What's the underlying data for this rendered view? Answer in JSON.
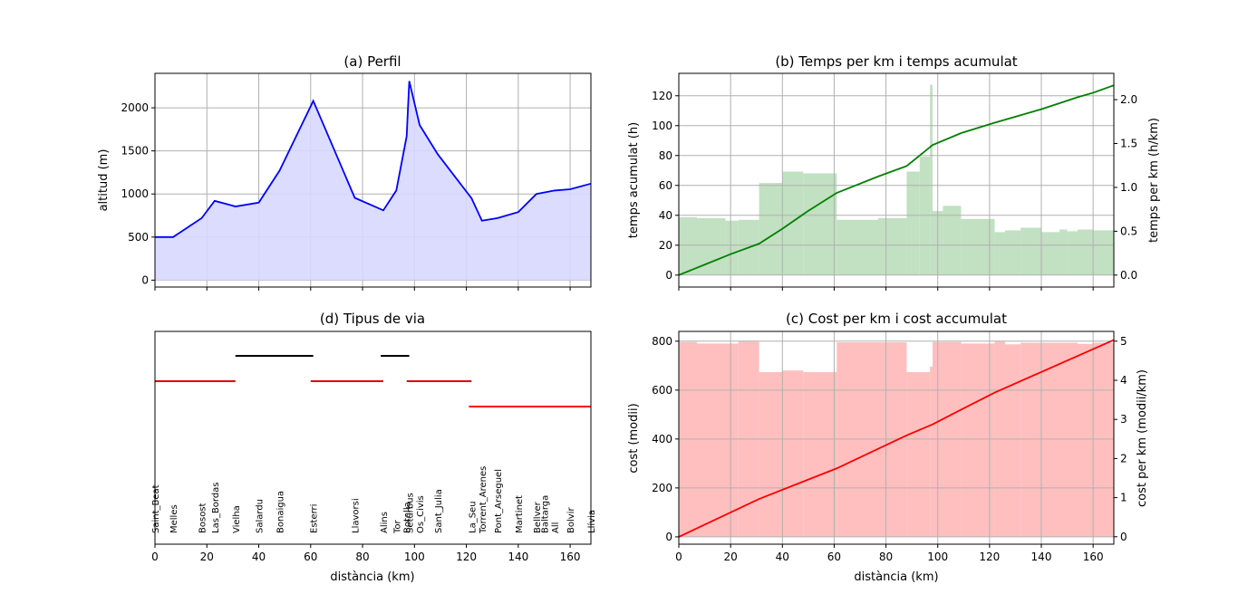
{
  "chart_data": [
    {
      "id": "a",
      "type": "area",
      "title": "(a) Perfil",
      "xlabel": "",
      "ylabel": "altitud (m)",
      "xlim": [
        0,
        168
      ],
      "ylim": [
        -80,
        2400
      ],
      "xticks": [
        0,
        20,
        40,
        60,
        80,
        100,
        120,
        140,
        160
      ],
      "yticks": [
        0,
        500,
        1000,
        1500,
        2000
      ],
      "grid": true,
      "colors": {
        "line": "#0000ff",
        "fill": "#d8d8ff"
      },
      "x": [
        0,
        7,
        18,
        23,
        31,
        40,
        48,
        61,
        64,
        77,
        88,
        93,
        97,
        98,
        102,
        109,
        122,
        126,
        132,
        140,
        147,
        154,
        160,
        168
      ],
      "y": [
        500,
        500,
        720,
        920,
        855,
        900,
        1270,
        2080,
        1870,
        955,
        810,
        1040,
        1670,
        2310,
        1800,
        1460,
        950,
        690,
        720,
        790,
        1000,
        1040,
        1055,
        1120
      ]
    },
    {
      "id": "b",
      "type": "bar+line",
      "title": "(b) Temps per km i temps acumulat",
      "xlabel": "",
      "ylabel": "temps acumulat (h)",
      "ylabel_right": "temps per km (h/km)",
      "xlim": [
        0,
        168
      ],
      "ylim": [
        -8,
        135
      ],
      "ylim_right": [
        -0.136,
        2.3
      ],
      "xticks": [
        0,
        20,
        40,
        60,
        80,
        100,
        120,
        140,
        160
      ],
      "yticks": [
        0,
        20,
        40,
        60,
        80,
        100,
        120
      ],
      "yticks_right": [
        0.0,
        0.5,
        1.0,
        1.5,
        2.0
      ],
      "ytick_labels_right": [
        "0.0",
        "0.5",
        "1.0",
        "1.5",
        "2.0"
      ],
      "grid": true,
      "colors": {
        "line": "#008000",
        "bars": "#c2e0c2"
      },
      "line": {
        "x": [
          0,
          10,
          20,
          31,
          40,
          50,
          61,
          77,
          88,
          98,
          109,
          122,
          132,
          140,
          147,
          154,
          160,
          168
        ],
        "y": [
          0,
          7,
          14,
          21,
          31,
          43,
          55,
          66,
          73,
          87,
          95,
          102,
          107,
          111,
          115,
          119,
          122,
          127
        ]
      },
      "bars": [
        {
          "x0": 0,
          "x1": 7,
          "v": 0.66
        },
        {
          "x0": 7,
          "x1": 18,
          "v": 0.65
        },
        {
          "x0": 18,
          "x1": 23,
          "v": 0.62
        },
        {
          "x0": 23,
          "x1": 31,
          "v": 0.63
        },
        {
          "x0": 31,
          "x1": 40,
          "v": 1.05
        },
        {
          "x0": 40,
          "x1": 48,
          "v": 1.18
        },
        {
          "x0": 48,
          "x1": 61,
          "v": 1.16
        },
        {
          "x0": 61,
          "x1": 77,
          "v": 0.63
        },
        {
          "x0": 77,
          "x1": 88,
          "v": 0.65
        },
        {
          "x0": 88,
          "x1": 93,
          "v": 1.18
        },
        {
          "x0": 93,
          "x1": 97,
          "v": 1.35
        },
        {
          "x0": 97,
          "x1": 98,
          "v": 2.17
        },
        {
          "x0": 98,
          "x1": 102,
          "v": 0.73
        },
        {
          "x0": 102,
          "x1": 109,
          "v": 0.79
        },
        {
          "x0": 109,
          "x1": 122,
          "v": 0.64
        },
        {
          "x0": 122,
          "x1": 126,
          "v": 0.49
        },
        {
          "x0": 126,
          "x1": 132,
          "v": 0.51
        },
        {
          "x0": 132,
          "x1": 140,
          "v": 0.54
        },
        {
          "x0": 140,
          "x1": 147,
          "v": 0.49
        },
        {
          "x0": 147,
          "x1": 150,
          "v": 0.52
        },
        {
          "x0": 150,
          "x1": 154,
          "v": 0.5
        },
        {
          "x0": 154,
          "x1": 160,
          "v": 0.52
        },
        {
          "x0": 160,
          "x1": 168,
          "v": 0.51
        }
      ]
    },
    {
      "id": "d",
      "type": "segments",
      "title": "(d) Tipus de via",
      "xlabel": "distància (km)",
      "ylabel": "",
      "xlim": [
        0,
        168
      ],
      "xticks": [
        0,
        20,
        40,
        60,
        80,
        100,
        120,
        140,
        160
      ],
      "segments": [
        {
          "x0": 0,
          "x1": 31,
          "level": 3,
          "color": "#dd0000"
        },
        {
          "x0": 31,
          "x1": 61,
          "level": 4,
          "color": "#000000"
        },
        {
          "x0": 60,
          "x1": 88,
          "level": 3,
          "color": "#dd0000"
        },
        {
          "x0": 87,
          "x1": 98,
          "level": 4,
          "color": "#000000"
        },
        {
          "x0": 97,
          "x1": 122,
          "level": 3,
          "color": "#dd0000"
        },
        {
          "x0": 121,
          "x1": 168,
          "level": 2,
          "color": "#ff0000"
        }
      ],
      "towns": [
        {
          "name": "Saint_Beat",
          "x": 0
        },
        {
          "name": "Melles",
          "x": 7
        },
        {
          "name": "Bosost",
          "x": 18
        },
        {
          "name": "Las_Bordas",
          "x": 23
        },
        {
          "name": "Vielha",
          "x": 31
        },
        {
          "name": "Salardu",
          "x": 40
        },
        {
          "name": "Bonaigua",
          "x": 48
        },
        {
          "name": "Esterri",
          "x": 61
        },
        {
          "name": "Llavorsi",
          "x": 77
        },
        {
          "name": "Alins",
          "x": 88
        },
        {
          "name": "Tor",
          "x": 93
        },
        {
          "name": "Botella",
          "x": 97
        },
        {
          "name": "Setúrbus",
          "x": 98
        },
        {
          "name": "Os_Civis",
          "x": 102
        },
        {
          "name": "Sant_Julia",
          "x": 109
        },
        {
          "name": "La_Seu",
          "x": 122
        },
        {
          "name": "Torrent_Arenes",
          "x": 126
        },
        {
          "name": "Pont_Arseguel",
          "x": 132
        },
        {
          "name": "Martinet",
          "x": 140
        },
        {
          "name": "Bellver",
          "x": 147
        },
        {
          "name": "Baltarga",
          "x": 150
        },
        {
          "name": "All",
          "x": 154
        },
        {
          "name": "Bolvir",
          "x": 160
        },
        {
          "name": "Llívia",
          "x": 168
        }
      ]
    },
    {
      "id": "c",
      "type": "bar+line",
      "title": "(c) Cost per km i cost accumulat",
      "xlabel": "distància (km)",
      "ylabel": "cost (modii)",
      "ylabel_right": "cost per km (modii/km)",
      "xlim": [
        0,
        168
      ],
      "ylim": [
        -30,
        840
      ],
      "ylim_right": [
        -0.19,
        5.25
      ],
      "xticks": [
        0,
        20,
        40,
        60,
        80,
        100,
        120,
        140,
        160
      ],
      "yticks": [
        0,
        200,
        400,
        600,
        800
      ],
      "yticks_right": [
        0,
        1,
        2,
        3,
        4,
        5
      ],
      "ytick_labels_right": [
        "0",
        "1",
        "2",
        "3",
        "4",
        "5"
      ],
      "grid": true,
      "colors": {
        "line": "#ff0000",
        "bars": "#ffbfbf"
      },
      "line": {
        "x": [
          0,
          31,
          61,
          88,
          98,
          109,
          122,
          168
        ],
        "y": [
          0,
          155,
          280,
          415,
          460,
          520,
          590,
          805
        ]
      },
      "bars": [
        {
          "x0": 0,
          "x1": 7,
          "v": 4.98
        },
        {
          "x0": 7,
          "x1": 23,
          "v": 4.94
        },
        {
          "x0": 23,
          "x1": 31,
          "v": 4.99
        },
        {
          "x0": 31,
          "x1": 40,
          "v": 4.21
        },
        {
          "x0": 40,
          "x1": 48,
          "v": 4.25
        },
        {
          "x0": 48,
          "x1": 61,
          "v": 4.21
        },
        {
          "x0": 61,
          "x1": 88,
          "v": 4.97
        },
        {
          "x0": 88,
          "x1": 97,
          "v": 4.21
        },
        {
          "x0": 97,
          "x1": 98,
          "v": 4.35
        },
        {
          "x0": 98,
          "x1": 109,
          "v": 4.98
        },
        {
          "x0": 109,
          "x1": 122,
          "v": 4.94
        },
        {
          "x0": 122,
          "x1": 126,
          "v": 4.99
        },
        {
          "x0": 126,
          "x1": 132,
          "v": 4.92
        },
        {
          "x0": 132,
          "x1": 154,
          "v": 4.96
        },
        {
          "x0": 154,
          "x1": 160,
          "v": 4.93
        },
        {
          "x0": 160,
          "x1": 168,
          "v": 4.96
        }
      ]
    }
  ]
}
